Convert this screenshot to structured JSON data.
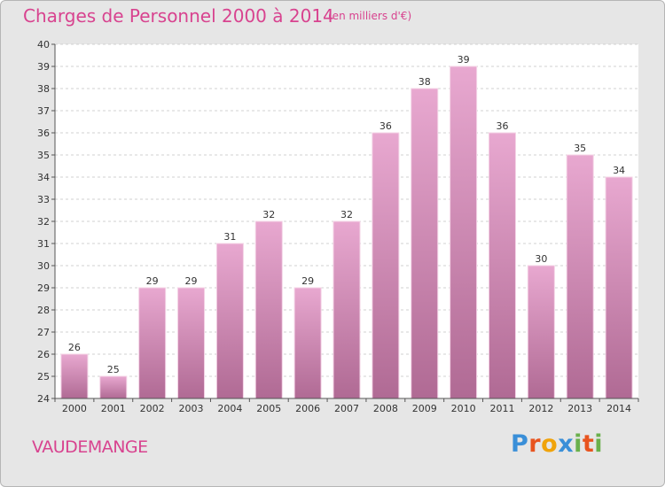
{
  "header": {
    "title": "Charges de Personnel 2000 à 2014",
    "subtitle": "(en milliers d'€)"
  },
  "footer": {
    "commune": "VAUDEMANGE",
    "logo_letters": [
      "P",
      "r",
      "o",
      "x",
      "i",
      "t",
      "i"
    ],
    "logo_colors": [
      "#3a8fd8",
      "#e8541f",
      "#f0a30a",
      "#3a8fd8",
      "#6ab04c",
      "#e8541f",
      "#6ab04c"
    ]
  },
  "chart_data": {
    "type": "bar",
    "title": "Charges de Personnel 2000 à 2014",
    "subtitle": "(en milliers d'€)",
    "categories": [
      "2000",
      "2001",
      "2002",
      "2003",
      "2004",
      "2005",
      "2006",
      "2007",
      "2008",
      "2009",
      "2010",
      "2011",
      "2012",
      "2013",
      "2014"
    ],
    "values": [
      26,
      25,
      29,
      29,
      31,
      32,
      29,
      32,
      36,
      38,
      39,
      36,
      30,
      35,
      34
    ],
    "xlabel": "",
    "ylabel": "",
    "ylim": [
      24,
      40
    ],
    "yticks": [
      24,
      25,
      26,
      27,
      28,
      29,
      30,
      31,
      32,
      33,
      34,
      35,
      36,
      37,
      38,
      39,
      40
    ],
    "grid": true,
    "bar_color_top": "#e8a8d0",
    "bar_color_bottom": "#b06a94"
  }
}
